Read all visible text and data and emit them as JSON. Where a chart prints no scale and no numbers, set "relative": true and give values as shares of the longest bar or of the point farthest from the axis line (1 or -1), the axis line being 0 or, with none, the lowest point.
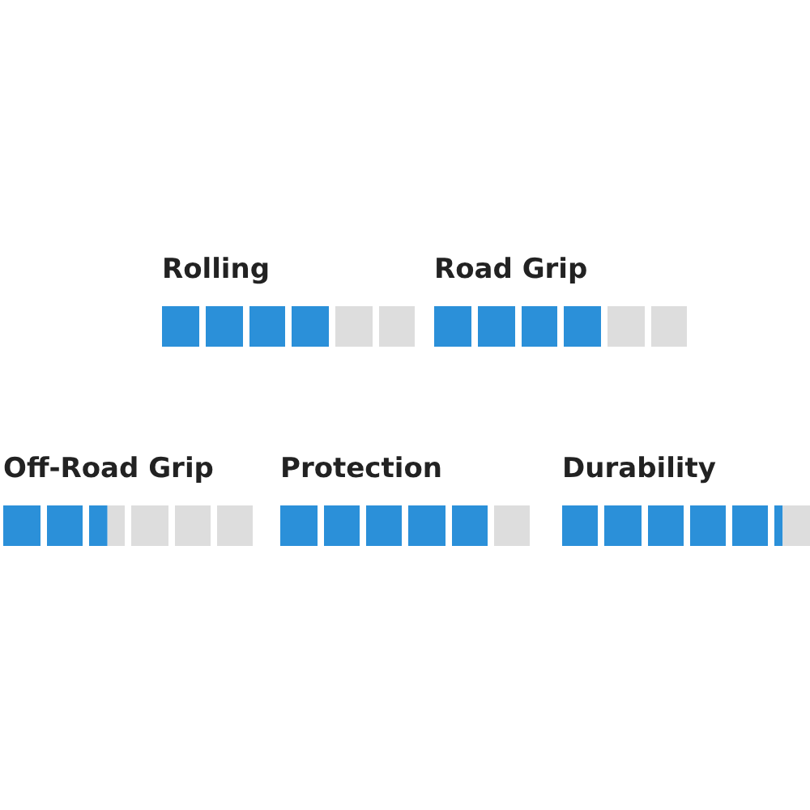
{
  "chart_data": [
    {
      "type": "bar",
      "orientation": "horizontal",
      "stacked": true,
      "relative": true,
      "title": "Rolling",
      "categories": [
        null
      ],
      "series": [
        {
          "color": "#2b90d9",
          "values": [
            0.67
          ]
        },
        {
          "color": "#dddddd",
          "values": [
            0.33
          ]
        }
      ]
    },
    {
      "type": "bar",
      "orientation": "horizontal",
      "stacked": true,
      "relative": true,
      "title": "Road Grip",
      "categories": [
        null
      ],
      "series": [
        {
          "color": "#2b90d9",
          "values": [
            0.67
          ]
        },
        {
          "color": "#dddddd",
          "values": [
            0.33
          ]
        }
      ]
    },
    {
      "type": "bar",
      "orientation": "horizontal",
      "stacked": true,
      "relative": true,
      "title": "Off-Road Grip",
      "categories": [
        null
      ],
      "series": [
        {
          "color": "#2b90d9",
          "values": [
            0.42
          ]
        },
        {
          "color": "#dddddd",
          "values": [
            0.58
          ]
        }
      ]
    },
    {
      "type": "bar",
      "orientation": "horizontal",
      "stacked": true,
      "relative": true,
      "title": "Protection",
      "categories": [
        null
      ],
      "series": [
        {
          "color": "#2b90d9",
          "values": [
            0.83
          ]
        },
        {
          "color": "#dddddd",
          "values": [
            0.17
          ]
        }
      ]
    },
    {
      "type": "bar",
      "orientation": "horizontal",
      "stacked": true,
      "relative": true,
      "title": "Durability",
      "categories": [
        null
      ],
      "series": [
        {
          "color": "#2b90d9",
          "values": [
            0.88
          ]
        },
        {
          "color": "#dddddd",
          "values": [
            0.12
          ]
        }
      ]
    }
  ]
}
